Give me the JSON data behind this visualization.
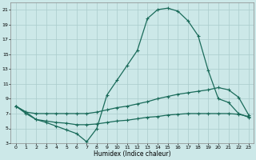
{
  "xlabel": "Humidex (Indice chaleur)",
  "xlim": [
    -0.5,
    23.5
  ],
  "ylim": [
    3,
    22
  ],
  "yticks": [
    3,
    5,
    7,
    9,
    11,
    13,
    15,
    17,
    19,
    21
  ],
  "xticks": [
    0,
    1,
    2,
    3,
    4,
    5,
    6,
    7,
    8,
    9,
    10,
    11,
    12,
    13,
    14,
    15,
    16,
    17,
    18,
    19,
    20,
    21,
    22,
    23
  ],
  "bg_color": "#cce8e8",
  "grid_color": "#aacccc",
  "line_color": "#1a6b5a",
  "curve1_x": [
    0,
    1,
    2,
    3,
    4,
    5,
    6,
    7,
    8,
    9,
    10,
    11,
    12,
    13,
    14,
    15,
    16,
    17,
    18,
    19,
    20,
    21,
    22,
    23
  ],
  "curve1_y": [
    8.0,
    7.0,
    6.2,
    5.8,
    5.3,
    4.8,
    4.3,
    3.2,
    5.0,
    9.5,
    11.5,
    13.5,
    15.5,
    19.8,
    21.0,
    21.2,
    20.8,
    19.5,
    17.5,
    12.8,
    9.0,
    8.5,
    7.0,
    6.5
  ],
  "curve2_x": [
    0,
    1,
    2,
    3,
    4,
    5,
    6,
    7,
    8,
    9,
    10,
    11,
    12,
    13,
    14,
    15,
    16,
    17,
    18,
    19,
    20,
    21,
    22,
    23
  ],
  "curve2_y": [
    8.0,
    7.2,
    7.0,
    7.0,
    7.0,
    7.0,
    7.0,
    7.0,
    7.2,
    7.5,
    7.8,
    8.0,
    8.3,
    8.6,
    9.0,
    9.3,
    9.6,
    9.8,
    10.0,
    10.2,
    10.5,
    10.2,
    9.2,
    6.8
  ],
  "curve3_x": [
    0,
    1,
    2,
    3,
    4,
    5,
    6,
    7,
    8,
    9,
    10,
    11,
    12,
    13,
    14,
    15,
    16,
    17,
    18,
    19,
    20,
    21,
    22,
    23
  ],
  "curve3_y": [
    8.0,
    7.2,
    6.2,
    6.0,
    5.8,
    5.7,
    5.5,
    5.5,
    5.6,
    5.8,
    6.0,
    6.1,
    6.3,
    6.5,
    6.6,
    6.8,
    6.9,
    7.0,
    7.0,
    7.0,
    7.0,
    7.0,
    6.9,
    6.6
  ]
}
